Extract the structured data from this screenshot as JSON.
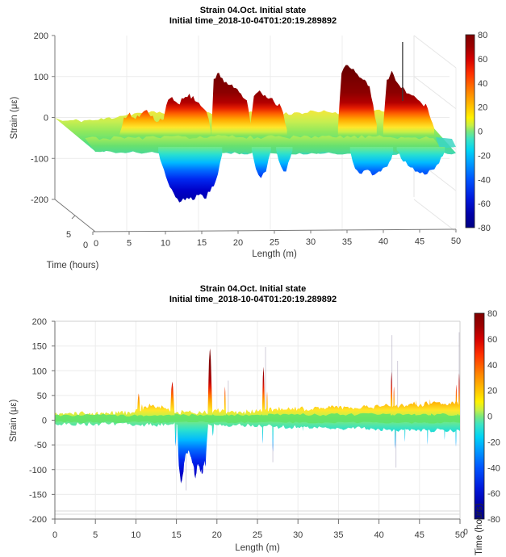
{
  "window": {
    "background": "#ffffff"
  },
  "chart_data": [
    {
      "type": "surface3d",
      "title": "Strain 04.Oct. Initial state",
      "subtitle": "Initial time_2018-10-04T01:20:19.289892",
      "xlabel": "Length (m)",
      "ylabel": "Time (hours)",
      "zlabel": "Strain (με)",
      "xlim": [
        0,
        50
      ],
      "zlim": [
        -200,
        200
      ],
      "xticks": [
        0,
        5,
        10,
        15,
        20,
        25,
        30,
        35,
        40,
        45,
        50
      ],
      "yticks": [
        0,
        5
      ],
      "zticks": [
        200,
        100,
        0,
        -100,
        -200
      ],
      "grid": true,
      "colorbar": {
        "min": -80,
        "max": 80,
        "ticks": [
          80,
          60,
          40,
          20,
          0,
          -20,
          -40,
          -60,
          -80
        ]
      },
      "baseline_strain": 10,
      "ridges": [
        {
          "dx": 0,
          "dy": 0,
          "points": [
            [
              5.8,
              4
            ],
            [
              6.4,
              44
            ],
            [
              7.2,
              56
            ],
            [
              8.0,
              40
            ],
            [
              8.8,
              52
            ],
            [
              9.6,
              62
            ],
            [
              10.4,
              48
            ],
            [
              11.2,
              34
            ],
            [
              12.0,
              40
            ],
            [
              12.9,
              26
            ],
            [
              13.4,
              6
            ]
          ]
        },
        {
          "dx": 12,
          "dy": 9,
          "points": [
            [
              11.8,
              6
            ],
            [
              12.5,
              36
            ],
            [
              13.3,
              52
            ],
            [
              14.0,
              34
            ],
            [
              14.7,
              44
            ],
            [
              15.4,
              28
            ],
            [
              16.0,
              6
            ]
          ]
        },
        {
          "dx": 0,
          "dy": 0,
          "points": [
            [
              11.7,
              8
            ],
            [
              12.3,
              74
            ],
            [
              13.1,
              94
            ],
            [
              13.9,
              78
            ],
            [
              14.7,
              90
            ],
            [
              15.5,
              102
            ],
            [
              16.3,
              84
            ],
            [
              17.1,
              72
            ],
            [
              17.9,
              58
            ],
            [
              18.5,
              10
            ]
          ]
        },
        {
          "dx": 0,
          "dy": 0,
          "points": [
            [
              18.6,
              12
            ],
            [
              18.9,
              138
            ],
            [
              19.4,
              152
            ],
            [
              20.1,
              140
            ],
            [
              20.9,
              124
            ],
            [
              21.7,
              116
            ],
            [
              22.7,
              102
            ],
            [
              23.5,
              86
            ],
            [
              24.1,
              18
            ]
          ]
        },
        {
          "dx": 0,
          "dy": 0,
          "points": [
            [
              23.9,
              12
            ],
            [
              24.5,
              96
            ],
            [
              25.3,
              110
            ],
            [
              26.3,
              92
            ],
            [
              27.3,
              82
            ],
            [
              28.3,
              68
            ],
            [
              29.1,
              14
            ]
          ]
        },
        {
          "dx": 0,
          "dy": 0,
          "points": [
            [
              36.2,
              20
            ],
            [
              36.7,
              152
            ],
            [
              37.3,
              172
            ],
            [
              38.1,
              162
            ],
            [
              38.9,
              150
            ],
            [
              39.7,
              136
            ],
            [
              40.6,
              120
            ],
            [
              41.6,
              28
            ]
          ]
        },
        {
          "dx": 0,
          "dy": 0,
          "points": [
            [
              42.5,
              24
            ],
            [
              43.0,
              136
            ],
            [
              43.7,
              158
            ],
            [
              44.5,
              128
            ],
            [
              45.5,
              112
            ],
            [
              46.5,
              98
            ],
            [
              47.6,
              84
            ],
            [
              48.7,
              66
            ],
            [
              49.6,
              18
            ]
          ]
        }
      ],
      "valleys": [
        {
          "points": [
            [
              9.9,
              -12
            ],
            [
              10.7,
              -58
            ],
            [
              11.5,
              -100
            ],
            [
              12.3,
              -125
            ],
            [
              13.1,
              -135
            ],
            [
              13.9,
              -126
            ],
            [
              14.7,
              -132
            ],
            [
              15.5,
              -120
            ],
            [
              16.3,
              -128
            ],
            [
              17.1,
              -112
            ],
            [
              17.9,
              -85
            ],
            [
              18.8,
              -20
            ]
          ]
        },
        {
          "points": [
            [
              22.9,
              -8
            ],
            [
              23.5,
              -56
            ],
            [
              24.2,
              -78
            ],
            [
              24.9,
              -62
            ],
            [
              25.6,
              -10
            ]
          ]
        },
        {
          "points": [
            [
              26.3,
              -8
            ],
            [
              27.0,
              -50
            ],
            [
              27.7,
              -62
            ],
            [
              28.6,
              -10
            ]
          ]
        },
        {
          "points": [
            [
              36.6,
              -10
            ],
            [
              37.3,
              -55
            ],
            [
              38.2,
              -68
            ],
            [
              39.1,
              -58
            ],
            [
              40.0,
              -70
            ],
            [
              40.9,
              -62
            ],
            [
              41.8,
              -50
            ],
            [
              42.6,
              -15
            ]
          ]
        },
        {
          "points": [
            [
              43.1,
              -10
            ],
            [
              44.0,
              -38
            ],
            [
              45.0,
              -52
            ],
            [
              46.0,
              -62
            ],
            [
              47.0,
              -70
            ],
            [
              48.0,
              -58
            ],
            [
              49.0,
              -42
            ],
            [
              49.8,
              -12
            ]
          ]
        }
      ],
      "spike_line": {
        "x": 45.2,
        "top": 230
      },
      "ribbon_top_envelope": [
        [
          0,
          6
        ],
        [
          3,
          7
        ],
        [
          5,
          8
        ],
        [
          8,
          18
        ],
        [
          10,
          24
        ],
        [
          12,
          26
        ],
        [
          15,
          28
        ],
        [
          18,
          26
        ],
        [
          20,
          28
        ],
        [
          24,
          26
        ],
        [
          27,
          24
        ],
        [
          30,
          22
        ],
        [
          33,
          26
        ],
        [
          36,
          28
        ],
        [
          40,
          26
        ],
        [
          43,
          30
        ],
        [
          46,
          26
        ],
        [
          48,
          30
        ],
        [
          50,
          22
        ]
      ],
      "ribbon_bottom_envelope": [
        [
          0,
          -4
        ],
        [
          10,
          -6
        ],
        [
          20,
          -8
        ],
        [
          30,
          -8
        ],
        [
          40,
          -10
        ],
        [
          50,
          -8
        ]
      ]
    },
    {
      "type": "profile2d",
      "title": "Strain 04.Oct. Initial state",
      "subtitle": "Initial time_2018-10-04T01:20:19.289892",
      "xlabel": "Length (m)",
      "ylabel": "Strain (με)",
      "time_axis_label": "Time (hours)",
      "time_axis_tick": "0",
      "xlim": [
        0,
        50
      ],
      "ylim": [
        -200,
        200
      ],
      "xticks": [
        0,
        5,
        10,
        15,
        20,
        25,
        30,
        35,
        40,
        45,
        50
      ],
      "yticks": [
        200,
        150,
        100,
        50,
        0,
        -50,
        -100,
        -150,
        -200
      ],
      "grid": true,
      "colorbar": {
        "min": -80,
        "max": 80,
        "ticks": [
          80,
          60,
          40,
          20,
          0,
          -20,
          -40,
          -60,
          -80
        ]
      },
      "band_top_envelope": [
        [
          0,
          13
        ],
        [
          2,
          14
        ],
        [
          4,
          13
        ],
        [
          6,
          15
        ],
        [
          8,
          14
        ],
        [
          9.5,
          16
        ],
        [
          10,
          22
        ],
        [
          10.8,
          18
        ],
        [
          11.2,
          28
        ],
        [
          12,
          30
        ],
        [
          12.6,
          26
        ],
        [
          13.2,
          30
        ],
        [
          13.8,
          22
        ],
        [
          14.2,
          18
        ],
        [
          15,
          16
        ],
        [
          16,
          16
        ],
        [
          17,
          15
        ],
        [
          18,
          16
        ],
        [
          19,
          16
        ],
        [
          19.8,
          22
        ],
        [
          20.5,
          18
        ],
        [
          21.5,
          16
        ],
        [
          22,
          18
        ],
        [
          23,
          16
        ],
        [
          24,
          17
        ],
        [
          25,
          18
        ],
        [
          26,
          20
        ],
        [
          27,
          22
        ],
        [
          28,
          24
        ],
        [
          29,
          22
        ],
        [
          30,
          24
        ],
        [
          31,
          22
        ],
        [
          32,
          26
        ],
        [
          33,
          24
        ],
        [
          34,
          26
        ],
        [
          35,
          24
        ],
        [
          36,
          27
        ],
        [
          37,
          25
        ],
        [
          38,
          28
        ],
        [
          39,
          26
        ],
        [
          40,
          28
        ],
        [
          41,
          32
        ],
        [
          42,
          28
        ],
        [
          43,
          30
        ],
        [
          44,
          34
        ],
        [
          45,
          30
        ],
        [
          46,
          34
        ],
        [
          47,
          36
        ],
        [
          48,
          32
        ],
        [
          49,
          38
        ],
        [
          50,
          34
        ]
      ],
      "band_bottom_envelope": [
        [
          0,
          -7
        ],
        [
          5,
          -8
        ],
        [
          10,
          -9
        ],
        [
          14,
          -10
        ],
        [
          15,
          -8
        ],
        [
          19,
          -9
        ],
        [
          20,
          -10
        ],
        [
          24,
          -10
        ],
        [
          26,
          -12
        ],
        [
          28,
          -14
        ],
        [
          30,
          -14
        ],
        [
          33,
          -15
        ],
        [
          35,
          -16
        ],
        [
          38,
          -16
        ],
        [
          40,
          -18
        ],
        [
          42,
          -20
        ],
        [
          44,
          -18
        ],
        [
          46,
          -21
        ],
        [
          48,
          -20
        ],
        [
          50,
          -22
        ]
      ],
      "negative_region": [
        [
          15.1,
          -12
        ],
        [
          15.3,
          -92
        ],
        [
          15.55,
          -128
        ],
        [
          15.8,
          -110
        ],
        [
          16.1,
          -72
        ],
        [
          16.45,
          -62
        ],
        [
          16.8,
          -75
        ],
        [
          17.1,
          -92
        ],
        [
          17.35,
          -118
        ],
        [
          17.6,
          -90
        ],
        [
          17.9,
          -100
        ],
        [
          18.2,
          -108
        ],
        [
          18.45,
          -82
        ],
        [
          18.6,
          -94
        ],
        [
          18.75,
          -44
        ],
        [
          18.9,
          -12
        ]
      ],
      "spikes_pos": [
        [
          10.35,
          54,
          0.22
        ],
        [
          10.75,
          32,
          0.18
        ],
        [
          11.5,
          26,
          0.2
        ],
        [
          12.1,
          30,
          0.25
        ],
        [
          12.9,
          28,
          0.22
        ],
        [
          14.5,
          78,
          0.28
        ],
        [
          19.15,
          145,
          0.3
        ],
        [
          21.0,
          68,
          0.12
        ],
        [
          25.75,
          108,
          0.18
        ],
        [
          26.2,
          58,
          0.1
        ],
        [
          41.55,
          98,
          0.13
        ],
        [
          41.85,
          68,
          0.1
        ],
        [
          44.6,
          40,
          0.12
        ],
        [
          46.3,
          42,
          0.12
        ],
        [
          49.55,
          72,
          0.12
        ],
        [
          49.9,
          95,
          0.1
        ]
      ],
      "spikes_neg": [
        [
          14.9,
          -53,
          0.12
        ],
        [
          19.5,
          -32,
          0.15
        ],
        [
          25.65,
          -48,
          0.08
        ],
        [
          26.9,
          -64,
          0.08
        ],
        [
          30.6,
          -22,
          0.08
        ],
        [
          42.0,
          -58,
          0.09
        ],
        [
          43.2,
          -44,
          0.08
        ],
        [
          46.0,
          -50,
          0.08
        ],
        [
          48.1,
          -40,
          0.08
        ],
        [
          49.5,
          -54,
          0.08
        ]
      ],
      "faint_lines_up": [
        [
          21.4,
          80
        ],
        [
          26.0,
          148
        ],
        [
          41.6,
          172
        ],
        [
          42.3,
          120
        ],
        [
          49.9,
          178
        ]
      ],
      "faint_lines_down": [
        [
          16.2,
          -142
        ],
        [
          26.9,
          -85
        ],
        [
          42.1,
          -96
        ]
      ]
    }
  ]
}
